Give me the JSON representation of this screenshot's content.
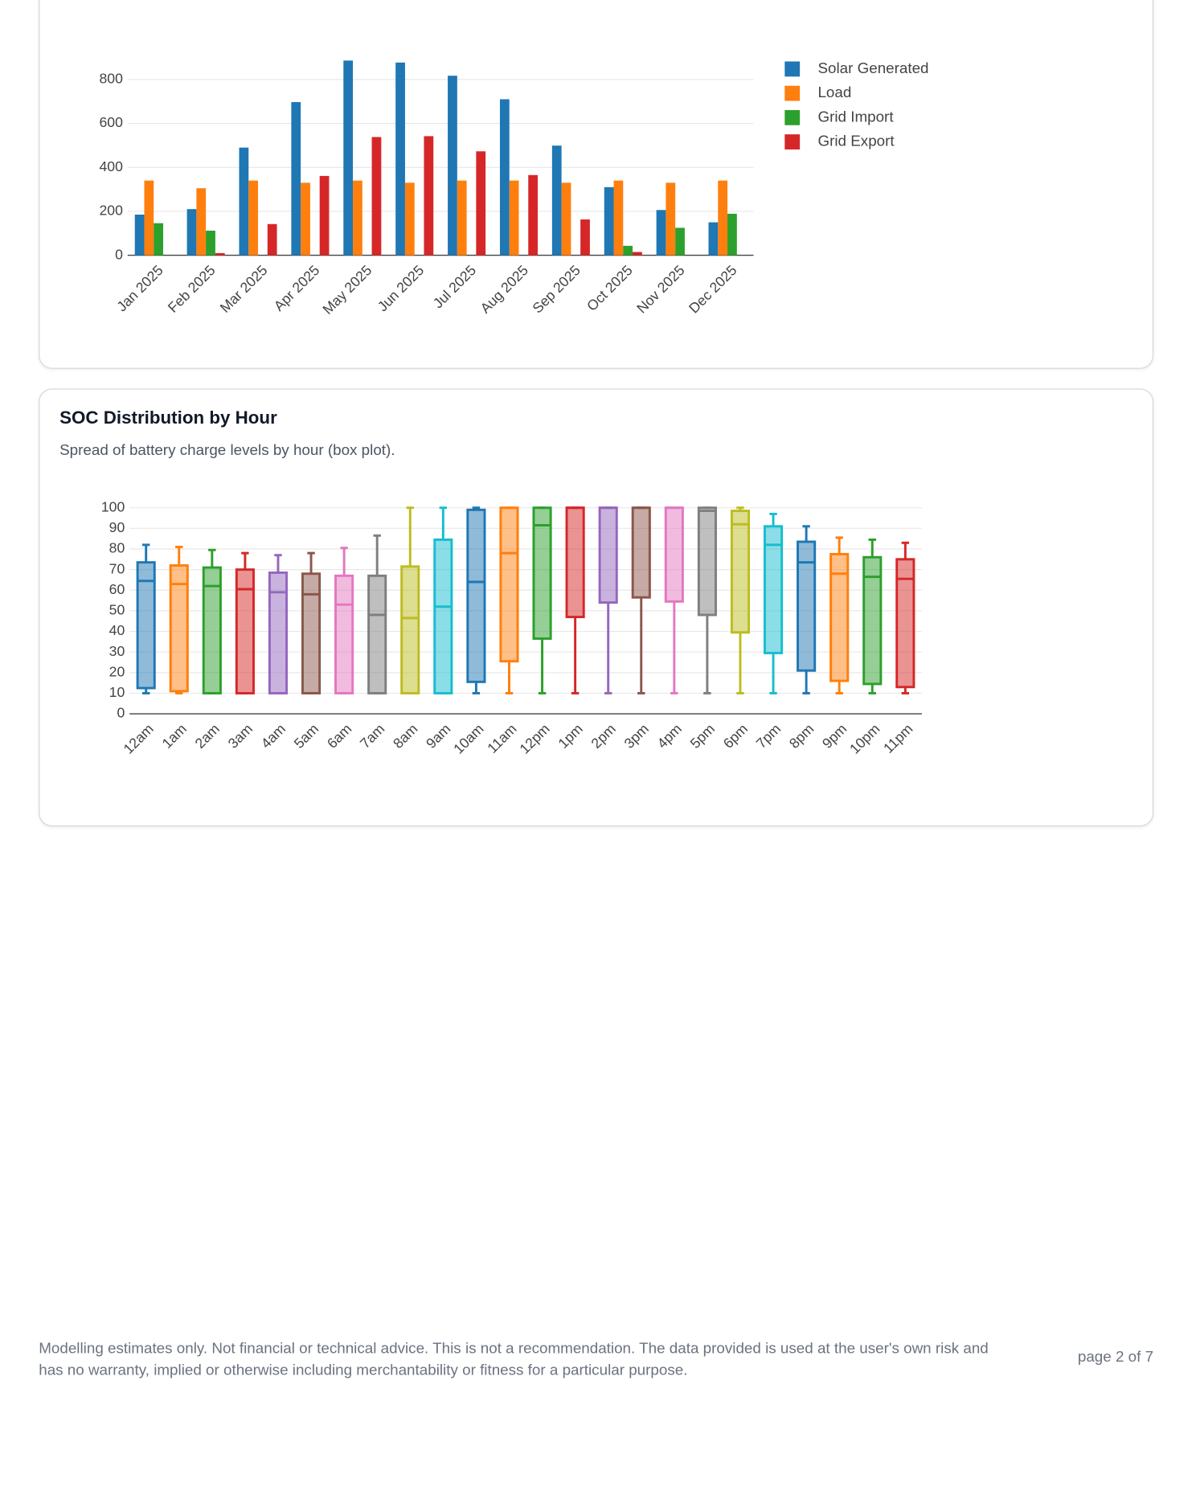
{
  "chart_data": [
    {
      "type": "bar",
      "categories": [
        "Jan 2025",
        "Feb 2025",
        "Mar 2025",
        "Apr 2025",
        "May 2025",
        "Jun 2025",
        "Jul 2025",
        "Aug 2025",
        "Sep 2025",
        "Oct 2025",
        "Nov 2025",
        "Dec 2025"
      ],
      "series": [
        {
          "name": "Solar Generated",
          "color": "#1f77b4",
          "values": [
            185,
            210,
            490,
            697,
            886,
            877,
            817,
            710,
            499,
            310,
            206,
            150
          ]
        },
        {
          "name": "Load",
          "color": "#ff7f0e",
          "values": [
            340,
            305,
            340,
            330,
            340,
            330,
            340,
            340,
            330,
            340,
            330,
            340
          ]
        },
        {
          "name": "Grid Import",
          "color": "#2ca02c",
          "values": [
            146,
            112,
            0,
            0,
            0,
            0,
            0,
            0,
            0,
            43,
            125,
            189
          ]
        },
        {
          "name": "Grid Export",
          "color": "#d62728",
          "values": [
            0,
            10,
            142,
            361,
            538,
            542,
            473,
            365,
            163,
            15,
            0,
            0
          ]
        }
      ],
      "ylim": [
        0,
        940
      ],
      "yticks": [
        0,
        200,
        400,
        600,
        800
      ],
      "grid": true,
      "legend": "right"
    },
    {
      "type": "box",
      "title": "SOC Distribution by Hour",
      "subtitle": "Spread of battery charge levels by hour (box plot).",
      "categories": [
        "12am",
        "1am",
        "2am",
        "3am",
        "4am",
        "5am",
        "6am",
        "7am",
        "8am",
        "9am",
        "10am",
        "11am",
        "12pm",
        "1pm",
        "2pm",
        "3pm",
        "4pm",
        "5pm",
        "6pm",
        "7pm",
        "8pm",
        "9pm",
        "10pm",
        "11pm"
      ],
      "colors": [
        "#1f77b4",
        "#ff7f0e",
        "#2ca02c",
        "#d62728",
        "#9467bd",
        "#8c564b",
        "#e377c2",
        "#7f7f7f",
        "#bcbd22",
        "#17becf",
        "#1f77b4",
        "#ff7f0e",
        "#2ca02c",
        "#d62728",
        "#9467bd",
        "#8c564b",
        "#e377c2",
        "#7f7f7f",
        "#bcbd22",
        "#17becf",
        "#1f77b4",
        "#ff7f0e",
        "#2ca02c",
        "#d62728"
      ],
      "min": [
        10,
        10,
        10,
        10,
        10,
        10,
        10,
        10,
        10,
        10,
        10,
        10,
        10,
        10,
        10,
        10,
        10,
        10,
        10,
        10,
        10,
        10,
        10,
        10
      ],
      "q1": [
        12.5,
        11,
        10,
        10,
        10,
        10,
        10,
        10,
        10,
        10,
        15.5,
        25.5,
        36.5,
        47,
        54,
        56.5,
        54.5,
        48,
        39.5,
        29.5,
        21,
        16,
        14.5,
        13
      ],
      "median": [
        64.5,
        63,
        62,
        60.5,
        59,
        58,
        53,
        48,
        46.5,
        52,
        64,
        78,
        91.5,
        100,
        100,
        100,
        100,
        98.5,
        92,
        82,
        73.5,
        68,
        66.5,
        65.5
      ],
      "q3": [
        73.5,
        72,
        71,
        70,
        68.5,
        68,
        67,
        67,
        71.5,
        84.5,
        99,
        100,
        100,
        100,
        100,
        100,
        100,
        100,
        98.5,
        91,
        83.5,
        77.5,
        76,
        75
      ],
      "max": [
        82,
        81,
        79.5,
        78,
        77,
        78,
        80.5,
        86.5,
        100,
        100,
        100,
        100,
        100,
        100,
        100,
        100,
        100,
        100,
        100,
        97,
        91,
        85.5,
        84.5,
        83
      ],
      "ylim": [
        0,
        103
      ],
      "yticks": [
        0,
        10,
        20,
        30,
        40,
        50,
        60,
        70,
        80,
        90,
        100
      ],
      "grid": true
    }
  ],
  "footer": {
    "disclaimer": "Modelling estimates only. Not financial or technical advice. This is not a recommendation. The data provided is used at the user's own risk and has no warranty, implied or otherwise including merchantability or fitness for a particular purpose.",
    "page": "page 2 of 7"
  }
}
